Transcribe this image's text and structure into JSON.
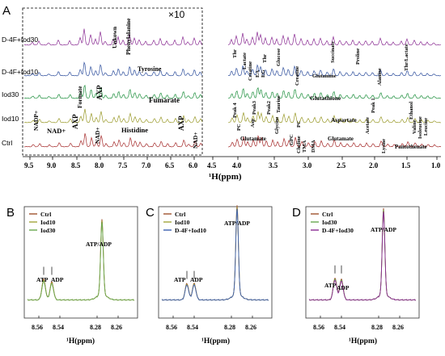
{
  "panel_a": {
    "label": "A",
    "inset_scale": "×10",
    "xlabel": "¹H(ppm)",
    "ticks": [
      "9.5",
      "9.0",
      "8.5",
      "8.0",
      "7.5",
      "7.0",
      "6.5",
      "6.0",
      "4.5",
      "4.0",
      "3.5",
      "3.0",
      "2.5",
      "2.0",
      "1.5",
      "1.0"
    ],
    "rows": [
      {
        "name": "D-4F+Iod30",
        "color": "#8a2c93"
      },
      {
        "name": "D-4F+Iod10",
        "color": "#2c4d9c"
      },
      {
        "name": "Iod30",
        "color": "#1b8e3b"
      },
      {
        "name": "Iod10",
        "color": "#9a9a2a"
      },
      {
        "name": "Ctrl",
        "color": "#a52a2a"
      }
    ],
    "annotations": {
      "unknown": "Unkown",
      "phenylalanine": "Phenylalanine",
      "tyrosine": "Tyrosine",
      "fumarate": "Fumarate",
      "formate": "Formate",
      "axp": "AXP",
      "nadp": "NADP+",
      "nad": "NAD+",
      "histidine": "Histidine",
      "thr": "Thr",
      "lactate": "Lactate",
      "creatine": "Creatine",
      "ea": "EA",
      "eg": "EG",
      "glucose": "Glucose",
      "succinate": "Succinate",
      "proline": "Proline",
      "thr_lactate": "Thr/Lactate",
      "glutamine": "Glutamine",
      "alanine": "Alanine",
      "peak4": "Peak 4",
      "peak3": "Peak3",
      "peak2": "Peak2",
      "taurine": "Taurine",
      "glutathione": "Glutathione",
      "peak1": "Peak 1",
      "ethanol": "Ethanol",
      "pc": "PC",
      "asp": "Asp",
      "glycine": "Glycine",
      "aspartate": "Aspartate",
      "acetate": "Acetate",
      "valine": "Valine",
      "isoleucine": "Isoleucine",
      "leucine": "Leucine",
      "glutamate": "Glutamate",
      "gpc": "GPC",
      "choline": "Choline",
      "tma": "TMA",
      "dma": "DMA",
      "lysine": "Lysine",
      "pantothenate": "Pantothenate"
    }
  },
  "panel_b": {
    "label": "B",
    "legend": [
      {
        "name": "Ctrl",
        "color": "#a0522d"
      },
      {
        "name": "Iod10",
        "color": "#a3a63a"
      },
      {
        "name": "Iod30",
        "color": "#6aa84f"
      }
    ],
    "labels": {
      "atp": "ATP",
      "adp": "ADP",
      "atpadp": "ATP/ADP"
    },
    "ticks": [
      "8.56",
      "8.54",
      "8.28",
      "8.26"
    ],
    "xlabel": "¹H(ppm)"
  },
  "panel_c": {
    "label": "C",
    "legend": [
      {
        "name": "Ctrl",
        "color": "#a0522d"
      },
      {
        "name": "Iod10",
        "color": "#a3a63a"
      },
      {
        "name": "D-4F+Iod10",
        "color": "#3b5fb0"
      }
    ],
    "labels": {
      "atp": "ATP",
      "adp": "ADP",
      "atpadp": "ATP/ADP"
    },
    "ticks": [
      "8.56",
      "8.54",
      "8.28",
      "8.26"
    ],
    "xlabel": "¹H(ppm)"
  },
  "panel_d": {
    "label": "D",
    "legend": [
      {
        "name": "Ctrl",
        "color": "#a0522d"
      },
      {
        "name": "Iod30",
        "color": "#6aa84f"
      },
      {
        "name": "D-4F+Iod30",
        "color": "#8a2c93"
      }
    ],
    "labels": {
      "atp": "ATP",
      "adp": "ADP",
      "atpadp": "ATP/ADP"
    },
    "ticks": [
      "8.56",
      "8.54",
      "8.28",
      "8.26"
    ],
    "xlabel": "¹H(ppm)"
  }
}
